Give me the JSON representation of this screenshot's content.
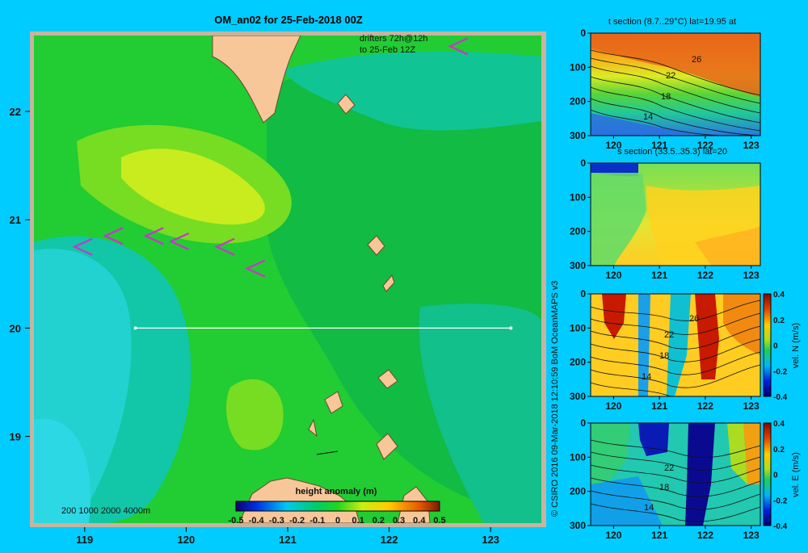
{
  "colors": {
    "background": "#00ccff",
    "land": "#f7c79a",
    "land_border": "#c8b09a",
    "drifter": "#cc33cc",
    "track": "#ffffff"
  },
  "chart_data": [
    {
      "type": "heatmap",
      "title": "OM_an02 for 25-Feb-2018 00Z",
      "annotation": [
        "drifters 72h@12h",
        "to 25-Feb 12Z"
      ],
      "x_ticks": [
        "119",
        "120",
        "121",
        "122",
        "123"
      ],
      "y_ticks": [
        "19",
        "20",
        "21",
        "22"
      ],
      "xlim": [
        118.5,
        123.5
      ],
      "ylim": [
        18.2,
        22.7
      ],
      "depth_legend": "200  1000  2000  4000m",
      "colorbar": {
        "label": "height anomaly  (m)",
        "ticks": [
          "-0.5",
          "-0.4",
          "-0.3",
          "-0.2",
          "-0.1",
          "0",
          "0.1",
          "0.2",
          "0.3",
          "0.4",
          "0.5"
        ],
        "range": [
          -0.5,
          0.5
        ]
      },
      "section_line": {
        "lat": 20,
        "lon_start": 119.5,
        "lon_end": 123.2
      },
      "drifters": [
        {
          "lon": 118.9,
          "lat": 20.75
        },
        {
          "lon": 119.2,
          "lat": 20.85
        },
        {
          "lon": 119.6,
          "lat": 20.85
        },
        {
          "lon": 119.85,
          "lat": 20.8
        },
        {
          "lon": 120.3,
          "lat": 20.75
        },
        {
          "lon": 120.6,
          "lat": 20.55
        },
        {
          "lon": 122.6,
          "lat": 22.6
        }
      ]
    },
    {
      "type": "heatmap",
      "title": "t section (8.7..29°C) lat=19.95 at",
      "x_ticks": [
        "120",
        "121",
        "122",
        "123"
      ],
      "y_ticks": [
        "0",
        "100",
        "200",
        "300"
      ],
      "xlim": [
        119.5,
        123.2
      ],
      "ylim": [
        0,
        300
      ],
      "contour_labels": [
        "26",
        "22",
        "18",
        "14"
      ]
    },
    {
      "type": "heatmap",
      "title": "s section (33.5..35.3) lat=20",
      "x_ticks": [
        "120",
        "121",
        "122",
        "123"
      ],
      "y_ticks": [
        "0",
        "100",
        "200",
        "300"
      ],
      "xlim": [
        119.5,
        123.2
      ],
      "ylim": [
        0,
        300
      ]
    },
    {
      "type": "heatmap",
      "x_ticks": [
        "120",
        "121",
        "122",
        "123"
      ],
      "y_ticks": [
        "0",
        "100",
        "200",
        "300"
      ],
      "xlim": [
        119.5,
        123.2
      ],
      "ylim": [
        0,
        300
      ],
      "contour_labels": [
        "26",
        "22",
        "18",
        "14"
      ],
      "colorbar": {
        "label": "vel. N  (m/s)",
        "ticks": [
          "0.4",
          "0.2",
          "0",
          "-0.2",
          "-0.4"
        ],
        "range": [
          -0.4,
          0.4
        ]
      }
    },
    {
      "type": "heatmap",
      "x_ticks": [
        "120",
        "121",
        "122",
        "123"
      ],
      "y_ticks": [
        "0",
        "100",
        "200",
        "300"
      ],
      "xlim": [
        119.5,
        123.2
      ],
      "ylim": [
        0,
        300
      ],
      "contour_labels": [
        "22",
        "18",
        "14"
      ],
      "colorbar": {
        "label": "vel. E  (m/s)",
        "ticks": [
          "0.4",
          "0.2",
          "0",
          "-0.2",
          "-0.4"
        ],
        "range": [
          -0.4,
          0.4
        ]
      }
    }
  ],
  "credit": "© CSIRO 2016   09-Mar-2018 12:10:59 BoM OceanMAPS v3"
}
